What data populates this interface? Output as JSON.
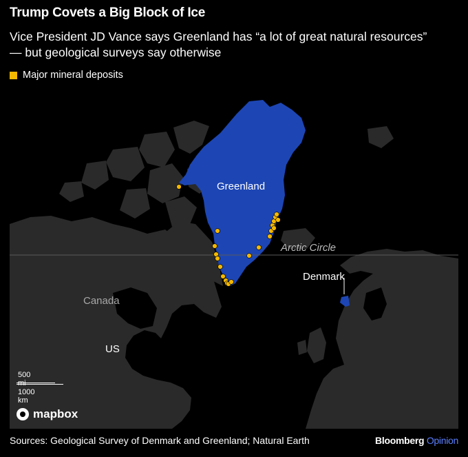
{
  "header": {
    "title": "Trump Covets a Big Block of Ice",
    "subtitle": "Vice President JD Vance says Greenland has “a lot of great natural resources” — but geological surveys say otherwise"
  },
  "legend": {
    "label": "Major mineral deposits",
    "color": "#f5b800"
  },
  "map": {
    "labels": {
      "greenland": "Greenland",
      "canada": "Canada",
      "us": "US",
      "denmark": "Denmark",
      "arctic_circle": "Arctic Circle"
    },
    "colors": {
      "highlight": "#1d46b4",
      "land": "#2a2a2a",
      "ocean": "#000000",
      "deposit": "#f5b800"
    },
    "scale": {
      "miles": "500 mi",
      "km": "1000 km"
    },
    "attribution": "mapbox"
  },
  "footer": {
    "sources": "Sources: Geological Survey of Denmark and Greenland; Natural Earth",
    "brand_main": "Bloomberg",
    "brand_sub": "Opinion"
  }
}
